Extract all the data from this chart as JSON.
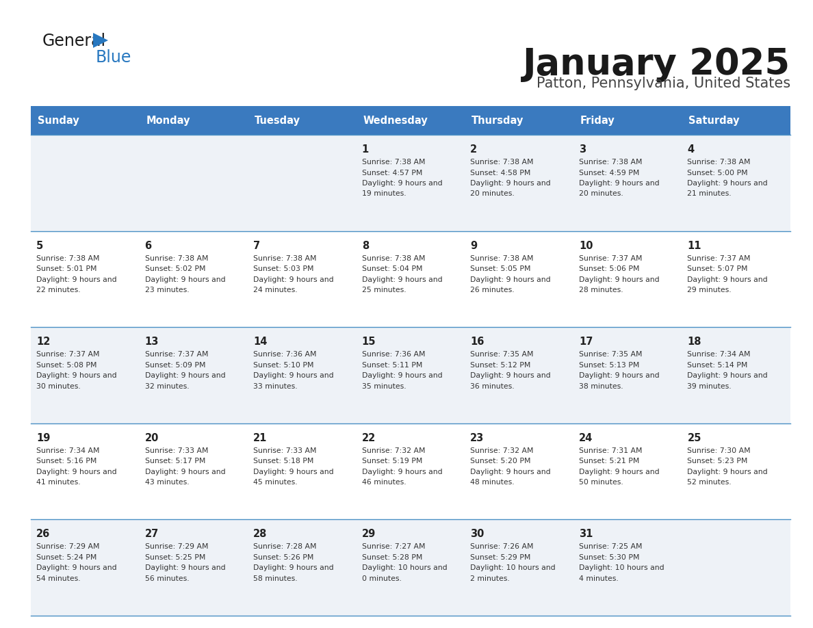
{
  "title": "January 2025",
  "subtitle": "Patton, Pennsylvania, United States",
  "header_bg": "#3a7abf",
  "header_text_color": "#ffffff",
  "cell_bg_odd": "#eef2f7",
  "cell_bg_even": "#ffffff",
  "border_color": "#4a90c4",
  "text_color": "#333333",
  "days_of_week": [
    "Sunday",
    "Monday",
    "Tuesday",
    "Wednesday",
    "Thursday",
    "Friday",
    "Saturday"
  ],
  "weeks": [
    [
      {
        "day": "",
        "sunrise": "",
        "sunset": "",
        "daylight": ""
      },
      {
        "day": "",
        "sunrise": "",
        "sunset": "",
        "daylight": ""
      },
      {
        "day": "",
        "sunrise": "",
        "sunset": "",
        "daylight": ""
      },
      {
        "day": "1",
        "sunrise": "7:38 AM",
        "sunset": "4:57 PM",
        "daylight": "9 hours and 19 minutes."
      },
      {
        "day": "2",
        "sunrise": "7:38 AM",
        "sunset": "4:58 PM",
        "daylight": "9 hours and 20 minutes."
      },
      {
        "day": "3",
        "sunrise": "7:38 AM",
        "sunset": "4:59 PM",
        "daylight": "9 hours and 20 minutes."
      },
      {
        "day": "4",
        "sunrise": "7:38 AM",
        "sunset": "5:00 PM",
        "daylight": "9 hours and 21 minutes."
      }
    ],
    [
      {
        "day": "5",
        "sunrise": "7:38 AM",
        "sunset": "5:01 PM",
        "daylight": "9 hours and 22 minutes."
      },
      {
        "day": "6",
        "sunrise": "7:38 AM",
        "sunset": "5:02 PM",
        "daylight": "9 hours and 23 minutes."
      },
      {
        "day": "7",
        "sunrise": "7:38 AM",
        "sunset": "5:03 PM",
        "daylight": "9 hours and 24 minutes."
      },
      {
        "day": "8",
        "sunrise": "7:38 AM",
        "sunset": "5:04 PM",
        "daylight": "9 hours and 25 minutes."
      },
      {
        "day": "9",
        "sunrise": "7:38 AM",
        "sunset": "5:05 PM",
        "daylight": "9 hours and 26 minutes."
      },
      {
        "day": "10",
        "sunrise": "7:37 AM",
        "sunset": "5:06 PM",
        "daylight": "9 hours and 28 minutes."
      },
      {
        "day": "11",
        "sunrise": "7:37 AM",
        "sunset": "5:07 PM",
        "daylight": "9 hours and 29 minutes."
      }
    ],
    [
      {
        "day": "12",
        "sunrise": "7:37 AM",
        "sunset": "5:08 PM",
        "daylight": "9 hours and 30 minutes."
      },
      {
        "day": "13",
        "sunrise": "7:37 AM",
        "sunset": "5:09 PM",
        "daylight": "9 hours and 32 minutes."
      },
      {
        "day": "14",
        "sunrise": "7:36 AM",
        "sunset": "5:10 PM",
        "daylight": "9 hours and 33 minutes."
      },
      {
        "day": "15",
        "sunrise": "7:36 AM",
        "sunset": "5:11 PM",
        "daylight": "9 hours and 35 minutes."
      },
      {
        "day": "16",
        "sunrise": "7:35 AM",
        "sunset": "5:12 PM",
        "daylight": "9 hours and 36 minutes."
      },
      {
        "day": "17",
        "sunrise": "7:35 AM",
        "sunset": "5:13 PM",
        "daylight": "9 hours and 38 minutes."
      },
      {
        "day": "18",
        "sunrise": "7:34 AM",
        "sunset": "5:14 PM",
        "daylight": "9 hours and 39 minutes."
      }
    ],
    [
      {
        "day": "19",
        "sunrise": "7:34 AM",
        "sunset": "5:16 PM",
        "daylight": "9 hours and 41 minutes."
      },
      {
        "day": "20",
        "sunrise": "7:33 AM",
        "sunset": "5:17 PM",
        "daylight": "9 hours and 43 minutes."
      },
      {
        "day": "21",
        "sunrise": "7:33 AM",
        "sunset": "5:18 PM",
        "daylight": "9 hours and 45 minutes."
      },
      {
        "day": "22",
        "sunrise": "7:32 AM",
        "sunset": "5:19 PM",
        "daylight": "9 hours and 46 minutes."
      },
      {
        "day": "23",
        "sunrise": "7:32 AM",
        "sunset": "5:20 PM",
        "daylight": "9 hours and 48 minutes."
      },
      {
        "day": "24",
        "sunrise": "7:31 AM",
        "sunset": "5:21 PM",
        "daylight": "9 hours and 50 minutes."
      },
      {
        "day": "25",
        "sunrise": "7:30 AM",
        "sunset": "5:23 PM",
        "daylight": "9 hours and 52 minutes."
      }
    ],
    [
      {
        "day": "26",
        "sunrise": "7:29 AM",
        "sunset": "5:24 PM",
        "daylight": "9 hours and 54 minutes."
      },
      {
        "day": "27",
        "sunrise": "7:29 AM",
        "sunset": "5:25 PM",
        "daylight": "9 hours and 56 minutes."
      },
      {
        "day": "28",
        "sunrise": "7:28 AM",
        "sunset": "5:26 PM",
        "daylight": "9 hours and 58 minutes."
      },
      {
        "day": "29",
        "sunrise": "7:27 AM",
        "sunset": "5:28 PM",
        "daylight": "10 hours and 0 minutes."
      },
      {
        "day": "30",
        "sunrise": "7:26 AM",
        "sunset": "5:29 PM",
        "daylight": "10 hours and 2 minutes."
      },
      {
        "day": "31",
        "sunrise": "7:25 AM",
        "sunset": "5:30 PM",
        "daylight": "10 hours and 4 minutes."
      },
      {
        "day": "",
        "sunrise": "",
        "sunset": "",
        "daylight": ""
      }
    ]
  ]
}
